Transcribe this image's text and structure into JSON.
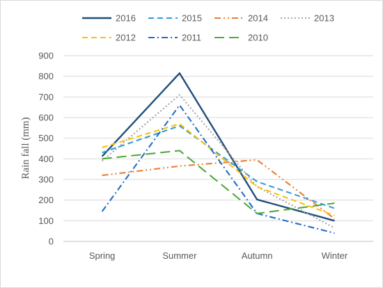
{
  "chart_data": {
    "type": "line",
    "title": "",
    "xlabel": "",
    "ylabel": "Rain fall (mm)",
    "categories": [
      "Spring",
      "Summer",
      "Autumn",
      "Winter"
    ],
    "ylim": [
      0,
      900
    ],
    "yticks": [
      0,
      100,
      200,
      300,
      400,
      500,
      600,
      700,
      800,
      900
    ],
    "grid": true,
    "legend_position": "top",
    "series": [
      {
        "name": "2016",
        "values": [
          412,
          815,
          203,
          100
        ],
        "color": "#1f4e79",
        "dash": "solid"
      },
      {
        "name": "2015",
        "values": [
          430,
          560,
          290,
          160
        ],
        "color": "#2e9bd6",
        "dash": "dash"
      },
      {
        "name": "2014",
        "values": [
          320,
          365,
          395,
          110
        ],
        "color": "#ed7d31",
        "dash": "dashdotdot"
      },
      {
        "name": "2013",
        "values": [
          390,
          710,
          265,
          65
        ],
        "color": "#a5a5a5",
        "dash": "dot"
      },
      {
        "name": "2012",
        "values": [
          455,
          570,
          265,
          125
        ],
        "color": "#ffc000",
        "dash": "dash"
      },
      {
        "name": "2011",
        "values": [
          145,
          660,
          135,
          40
        ],
        "color": "#1f6fc2",
        "dash": "dashdot"
      },
      {
        "name": "2010",
        "values": [
          400,
          440,
          135,
          185
        ],
        "color": "#4eaa3c",
        "dash": "longdash"
      }
    ]
  }
}
